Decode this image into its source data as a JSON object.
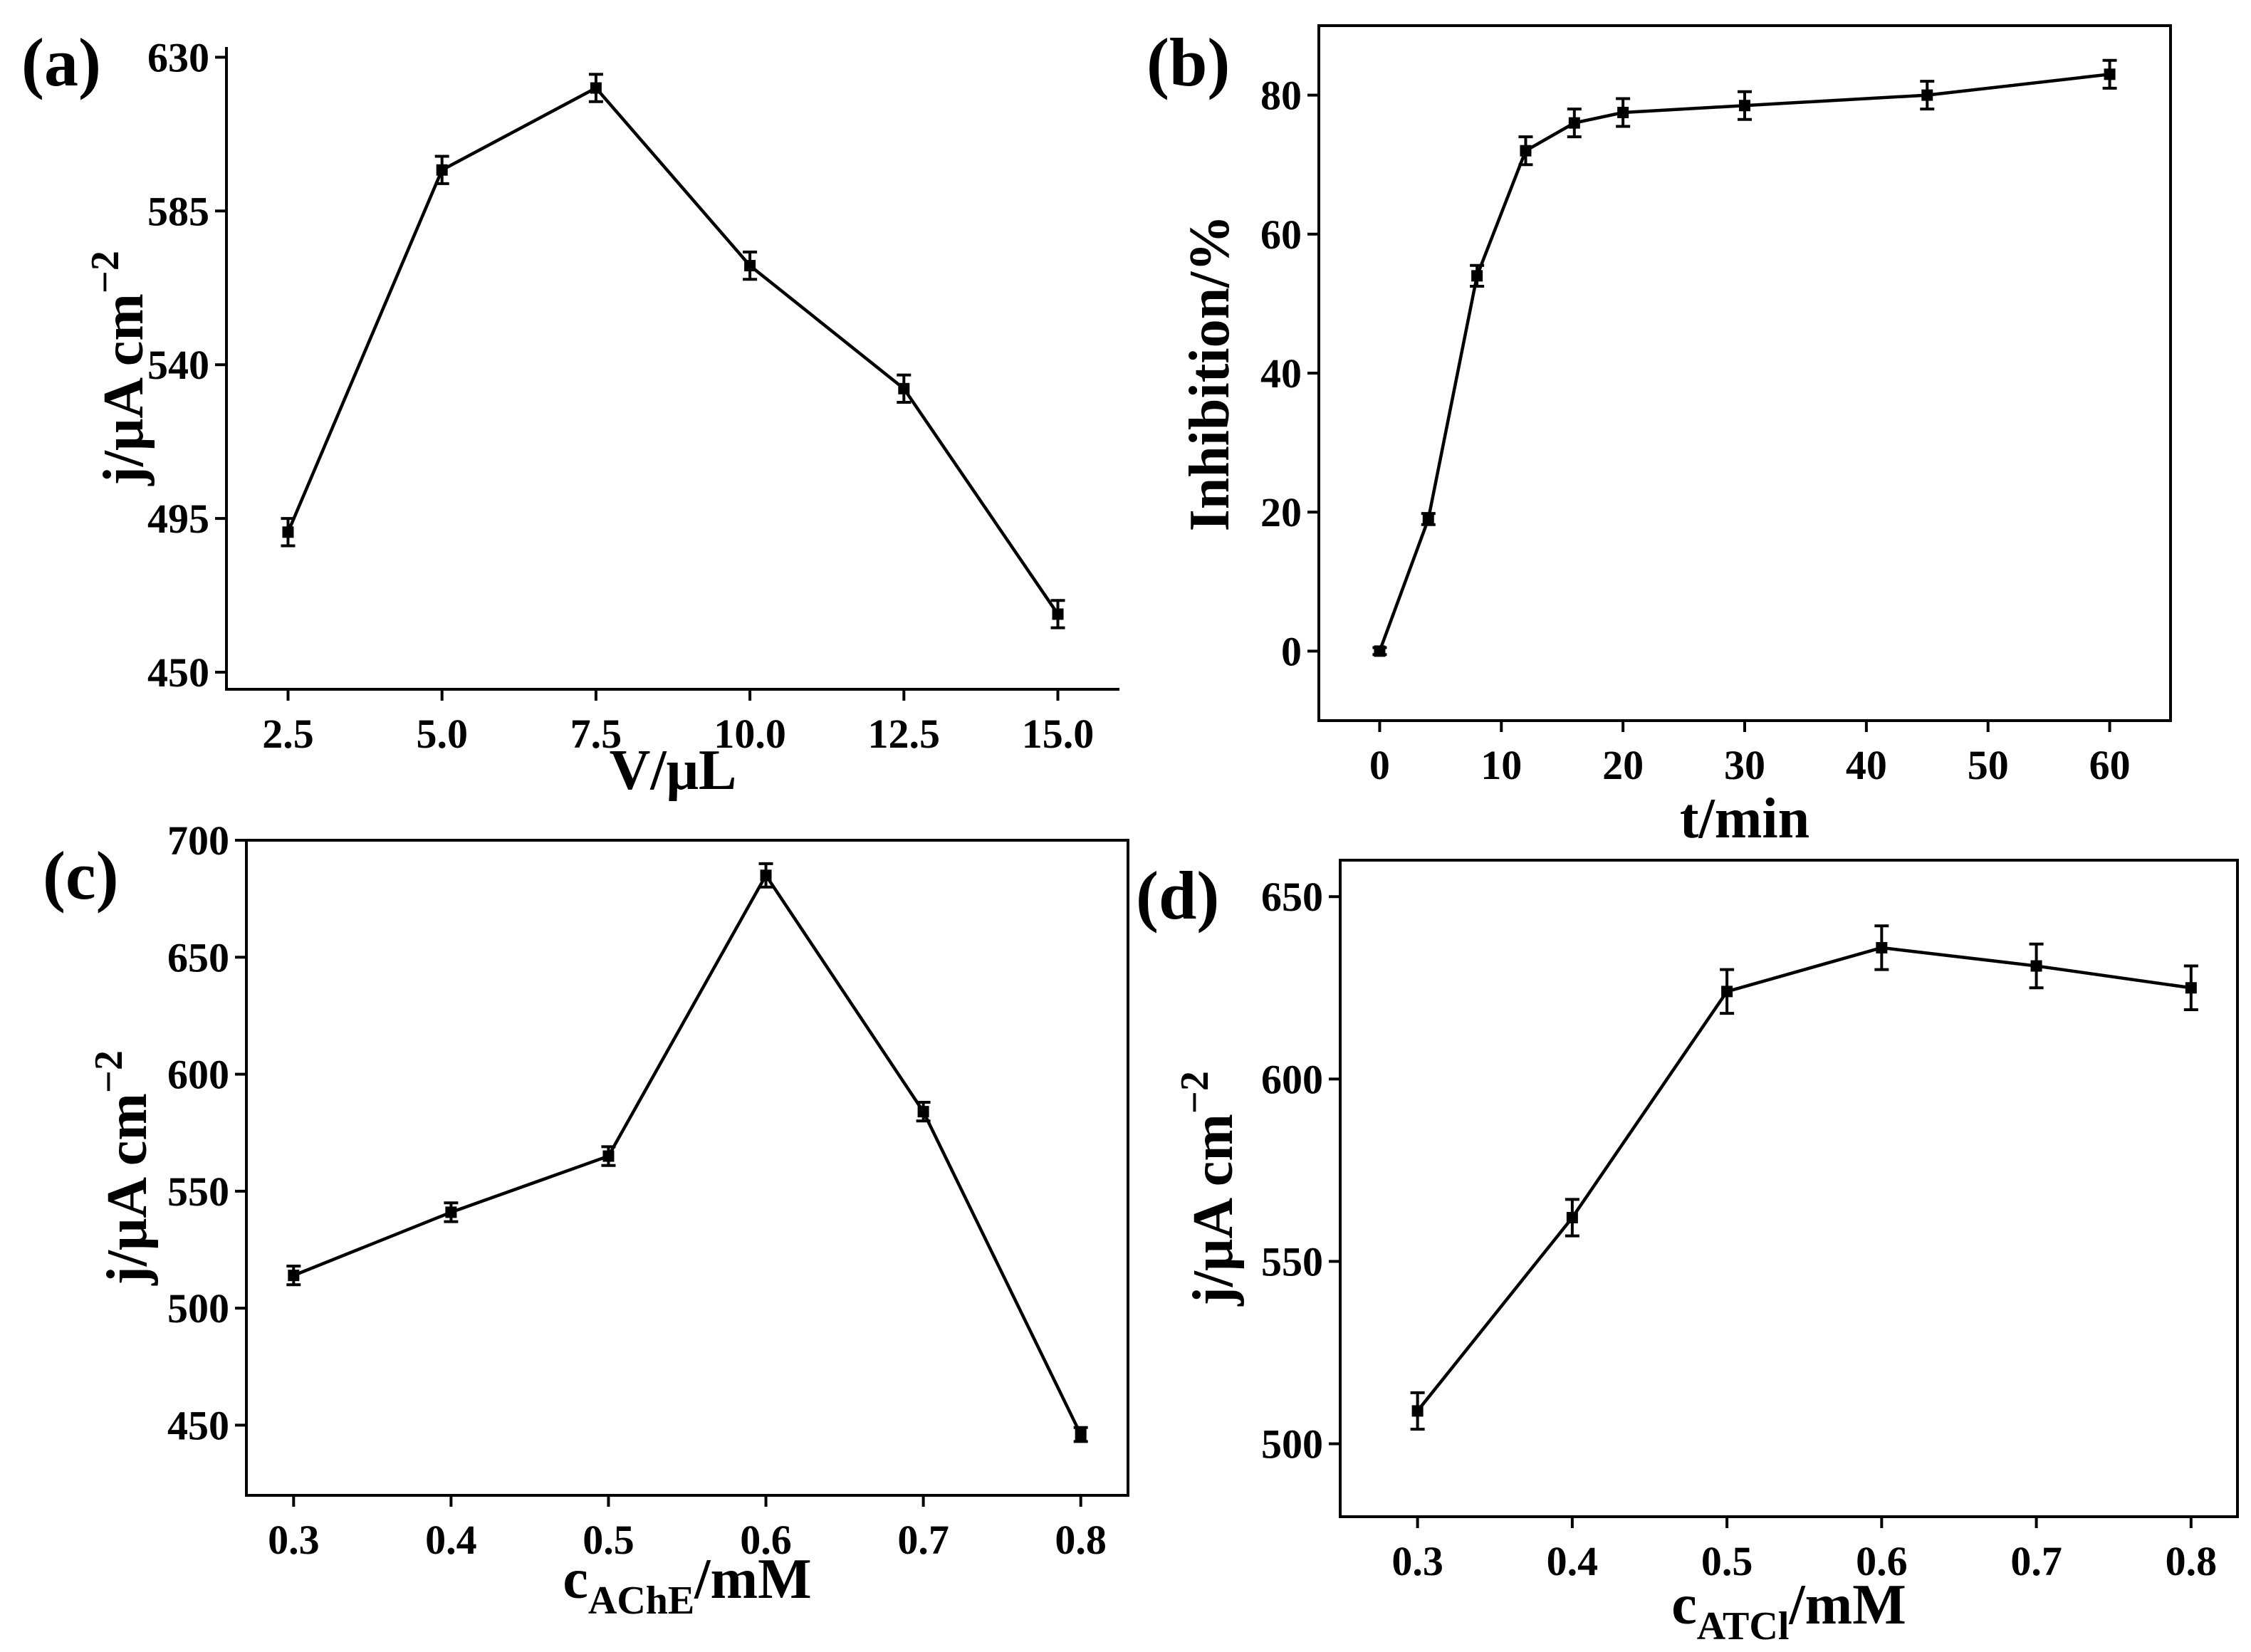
{
  "chart_data": [
    {
      "id": "a",
      "panel_label": "(a)",
      "type": "line",
      "x": [
        2.5,
        5.0,
        7.5,
        10.0,
        12.5,
        15.0
      ],
      "y": [
        491,
        597,
        621,
        569,
        533,
        467
      ],
      "err": [
        4,
        4,
        4,
        4,
        4,
        4
      ],
      "xlim": [
        1.5,
        16.0
      ],
      "ylim": [
        445,
        633
      ],
      "xticks": [
        2.5,
        5.0,
        7.5,
        10.0,
        12.5,
        15.0
      ],
      "xtick_labels": [
        "2.5",
        "5.0",
        "7.5",
        "10.0",
        "12.5",
        "15.0"
      ],
      "yticks": [
        450,
        495,
        540,
        585,
        630
      ],
      "ytick_labels": [
        "450",
        "495",
        "540",
        "585",
        "630"
      ],
      "xlabel": "V/μL",
      "ylabel": "j/μA cm",
      "ylabel_sup": "−2"
    },
    {
      "id": "b",
      "panel_label": "(b)",
      "type": "line",
      "x": [
        0,
        4,
        8,
        12,
        16,
        20,
        30,
        45,
        60
      ],
      "y": [
        0,
        19,
        54,
        72,
        76,
        77.5,
        78.5,
        80,
        83
      ],
      "err": [
        0.5,
        0.8,
        1.5,
        2,
        2,
        2,
        2,
        2,
        2
      ],
      "xlim": [
        -5,
        65
      ],
      "ylim": [
        -10,
        90
      ],
      "xticks": [
        0,
        10,
        20,
        30,
        40,
        50,
        60
      ],
      "xtick_labels": [
        "0",
        "10",
        "20",
        "30",
        "40",
        "50",
        "60"
      ],
      "yticks": [
        0,
        20,
        40,
        60,
        80
      ],
      "ytick_labels": [
        "0",
        "20",
        "40",
        "60",
        "80"
      ],
      "xlabel": "t/min",
      "ylabel": "Inhibition/%",
      "ylabel_sup": ""
    },
    {
      "id": "c",
      "panel_label": "(c)",
      "type": "line",
      "x": [
        0.3,
        0.4,
        0.5,
        0.6,
        0.7,
        0.8
      ],
      "y": [
        514,
        541,
        565,
        685,
        584,
        446
      ],
      "err": [
        4,
        4,
        4,
        5,
        4,
        3
      ],
      "xlim": [
        0.27,
        0.83
      ],
      "ylim": [
        420,
        700
      ],
      "xticks": [
        0.3,
        0.4,
        0.5,
        0.6,
        0.7,
        0.8
      ],
      "xtick_labels": [
        "0.3",
        "0.4",
        "0.5",
        "0.6",
        "0.7",
        "0.8"
      ],
      "yticks": [
        450,
        500,
        550,
        600,
        650,
        700
      ],
      "ytick_labels": [
        "450",
        "500",
        "550",
        "600",
        "650",
        "700"
      ],
      "xlabel": "c",
      "xlabel_sub": "AChE",
      "xlabel_rest": "/mM",
      "ylabel": "j/μA cm",
      "ylabel_sup": "−2"
    },
    {
      "id": "d",
      "panel_label": "(d)",
      "type": "line",
      "x": [
        0.3,
        0.4,
        0.5,
        0.6,
        0.7,
        0.8
      ],
      "y": [
        509,
        562,
        624,
        636,
        631,
        625
      ],
      "err": [
        5,
        5,
        6,
        6,
        6,
        6
      ],
      "xlim": [
        0.25,
        0.83
      ],
      "ylim": [
        480,
        660
      ],
      "xticks": [
        0.3,
        0.4,
        0.5,
        0.6,
        0.7,
        0.8
      ],
      "xtick_labels": [
        "0.3",
        "0.4",
        "0.5",
        "0.6",
        "0.7",
        "0.8"
      ],
      "yticks": [
        500,
        550,
        600,
        650
      ],
      "ytick_labels": [
        "500",
        "550",
        "600",
        "650"
      ],
      "xlabel": "c",
      "xlabel_sub": "ATCl",
      "xlabel_rest": "/mM",
      "ylabel": "j/μA cm",
      "ylabel_sup": "−2"
    }
  ]
}
